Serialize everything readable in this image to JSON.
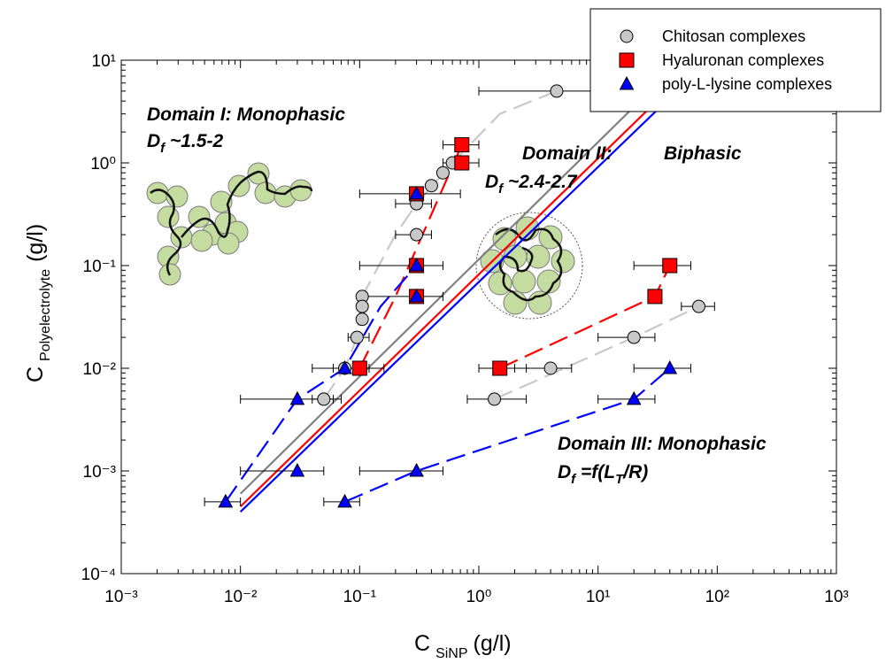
{
  "chart_data": {
    "type": "scatter",
    "log_x": true,
    "log_y": true,
    "xlim": [
      0.001,
      1000
    ],
    "ylim": [
      0.0001,
      10
    ],
    "xticks": [
      {
        "value": 0.001,
        "label": "10⁻³"
      },
      {
        "value": 0.01,
        "label": "10⁻²"
      },
      {
        "value": 0.1,
        "label": "10⁻¹"
      },
      {
        "value": 1,
        "label": "10⁰"
      },
      {
        "value": 10,
        "label": "10¹"
      },
      {
        "value": 100,
        "label": "10²"
      },
      {
        "value": 1000,
        "label": "10³"
      }
    ],
    "yticks": [
      {
        "value": 0.0001,
        "label": "10⁻⁴"
      },
      {
        "value": 0.001,
        "label": "10⁻³"
      },
      {
        "value": 0.01,
        "label": "10⁻²"
      },
      {
        "value": 0.1,
        "label": "10⁻¹"
      },
      {
        "value": 1,
        "label": "10⁰"
      },
      {
        "value": 10,
        "label": "10¹"
      }
    ],
    "xlabel": {
      "main": "C",
      "sub": "SiNP",
      "unit": "(g/l)"
    },
    "ylabel": {
      "main": "C",
      "sub": "Polyelectrolyte",
      "unit": "(g/l)"
    },
    "legend": "top-right",
    "series": [
      {
        "name": "Chitosan complexes",
        "color": "#c8c8c8",
        "marker": "circle",
        "x": [
          4.5,
          0.6,
          0.5,
          0.4,
          0.3,
          0.3,
          0.105,
          0.105,
          0.105,
          0.095,
          0.075,
          0.05,
          70,
          20,
          4,
          1.35
        ],
        "values": [
          5,
          1,
          0.8,
          0.6,
          0.4,
          0.2,
          0.05,
          0.04,
          0.03,
          0.02,
          0.01,
          0.005,
          0.04,
          0.02,
          0.01,
          0.005
        ],
        "x_err_low": [
          1,
          null,
          null,
          null,
          0.2,
          0.2,
          null,
          null,
          null,
          0.08,
          null,
          0.04,
          50,
          10,
          2,
          0.8
        ],
        "x_err_high": [
          12,
          null,
          null,
          null,
          0.4,
          0.4,
          null,
          null,
          null,
          0.12,
          null,
          0.07,
          95,
          30,
          6,
          2.5
        ]
      },
      {
        "name": "Hyaluronan complexes",
        "color": "#ff0000",
        "marker": "square",
        "x": [
          0.72,
          0.72,
          0.3,
          0.3,
          0.3,
          0.1,
          40,
          30,
          1.5
        ],
        "values": [
          1.5,
          1,
          0.5,
          0.1,
          0.05,
          0.01,
          0.1,
          0.05,
          0.01
        ],
        "x_err_low": [
          0.5,
          0.5,
          0.1,
          0.1,
          0.1,
          0.06,
          20,
          null,
          1
        ],
        "x_err_high": [
          1,
          1,
          0.7,
          0.5,
          0.5,
          0.16,
          60,
          null,
          2.5
        ]
      },
      {
        "name": "poly-L-lysine complexes",
        "color": "#0000ff",
        "marker": "triangle",
        "x": [
          0.3,
          0.3,
          0.3,
          0.075,
          0.03,
          0.03,
          0.0075,
          0.075,
          0.3,
          20,
          40
        ],
        "values": [
          0.5,
          0.1,
          0.05,
          0.01,
          0.005,
          0.001,
          0.0005,
          0.0005,
          0.001,
          0.005,
          0.01
        ],
        "x_err_low": [
          null,
          null,
          null,
          0.04,
          0.01,
          0.01,
          0.005,
          0.05,
          0.1,
          10,
          20
        ],
        "x_err_high": [
          null,
          null,
          null,
          0.12,
          0.06,
          0.05,
          0.01,
          0.1,
          0.5,
          30,
          60
        ]
      }
    ],
    "lines": [
      {
        "color": "#808080",
        "style": "solid",
        "x": [
          0.01,
          50
        ],
        "y": [
          0.0006,
          10
        ]
      },
      {
        "color": "#ff0000",
        "style": "solid",
        "x": [
          0.01,
          70
        ],
        "y": [
          0.00045,
          10
        ]
      },
      {
        "color": "#0000ff",
        "style": "solid",
        "x": [
          0.01,
          85
        ],
        "y": [
          0.0004,
          10
        ]
      },
      {
        "color": "#c8c8c8",
        "style": "dashed",
        "x": [
          0.05,
          0.075,
          0.095,
          0.105,
          0.2,
          0.3,
          0.6,
          1.5,
          4.5
        ],
        "y": [
          0.005,
          0.01,
          0.02,
          0.05,
          0.2,
          0.4,
          1,
          3,
          5
        ]
      },
      {
        "color": "#ff0000",
        "style": "dashed",
        "x": [
          0.1,
          0.2,
          0.72
        ],
        "y": [
          0.01,
          0.05,
          1.5
        ]
      },
      {
        "color": "#0000ff",
        "style": "dashed",
        "x": [
          0.0075,
          0.03,
          0.075,
          0.15,
          0.3
        ],
        "y": [
          0.0005,
          0.005,
          0.01,
          0.04,
          0.1
        ]
      },
      {
        "color": "#c8c8c8",
        "style": "dashed",
        "x": [
          1.35,
          20,
          70
        ],
        "y": [
          0.005,
          0.02,
          0.04
        ]
      },
      {
        "color": "#ff0000",
        "style": "dashed",
        "x": [
          1.5,
          30,
          40
        ],
        "y": [
          0.01,
          0.05,
          0.1
        ]
      },
      {
        "color": "#0000ff",
        "style": "dashed",
        "x": [
          0.075,
          0.3,
          20,
          40
        ],
        "y": [
          0.0005,
          0.001,
          0.005,
          0.01
        ]
      }
    ],
    "annotations": {
      "domain1": {
        "title": "Domain I: Monophasic",
        "d": "D",
        "f": "f",
        "rest": " ~1.5-2"
      },
      "domain2": {
        "title": "Domain II:",
        "phase": "Biphasic",
        "d": "D",
        "f": "f",
        "rest": " ~2.4-2.7"
      },
      "domain3": {
        "title": "Domain III: Monophasic",
        "d": "D",
        "f": "f",
        "rest": " =f(L",
        "t": "T",
        "end": "/R)"
      }
    }
  }
}
